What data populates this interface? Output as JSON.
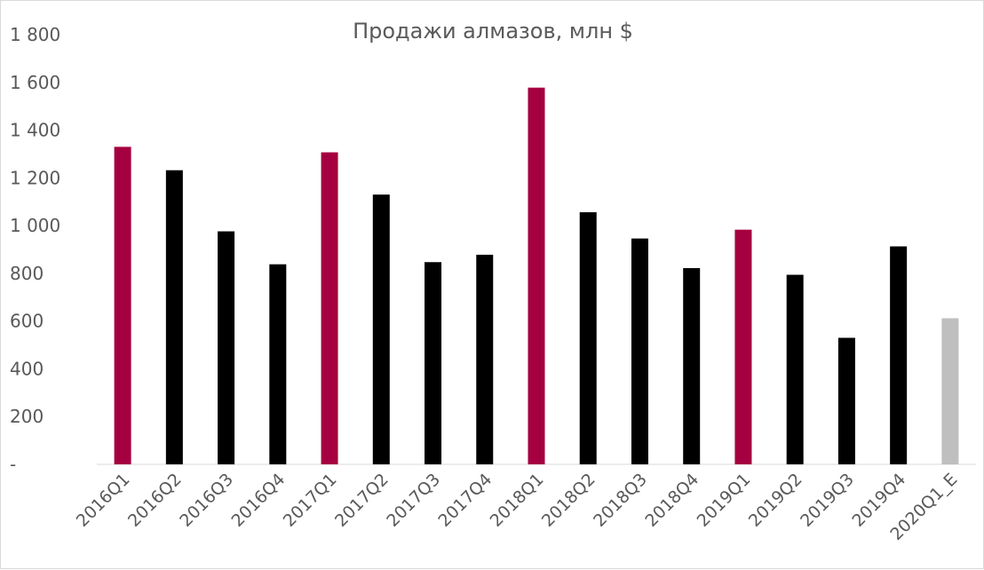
{
  "chart_data": {
    "type": "bar",
    "title": "Продажи  алмазов, млн $",
    "xlabel": "",
    "ylabel": "",
    "ylim": [
      0,
      1800
    ],
    "yticks": [
      0,
      200,
      400,
      600,
      800,
      1000,
      1200,
      1400,
      1600,
      1800
    ],
    "ytick_labels": [
      "-",
      "200",
      "400",
      "600",
      "800",
      "1 000",
      "1 200",
      "1 400",
      "1 600",
      "1 800"
    ],
    "grid": false,
    "legend": "none",
    "categories": [
      "2016Q1",
      "2016Q2",
      "2016Q3",
      "2016Q4",
      "2017Q1",
      "2017Q2",
      "2017Q3",
      "2017Q4",
      "2018Q1",
      "2018Q2",
      "2018Q3",
      "2018Q4",
      "2019Q1",
      "2019Q2",
      "2019Q3",
      "2019Q4",
      "2020Q1_E"
    ],
    "values": [
      1330,
      1232,
      976,
      838,
      1307,
      1130,
      847,
      878,
      1578,
      1056,
      946,
      822,
      983,
      794,
      530,
      913,
      612
    ],
    "bar_colors": [
      "#a50040",
      "#000000",
      "#000000",
      "#000000",
      "#a50040",
      "#000000",
      "#000000",
      "#000000",
      "#a50040",
      "#000000",
      "#000000",
      "#000000",
      "#a50040",
      "#000000",
      "#000000",
      "#000000",
      "#bfbfbf"
    ]
  }
}
